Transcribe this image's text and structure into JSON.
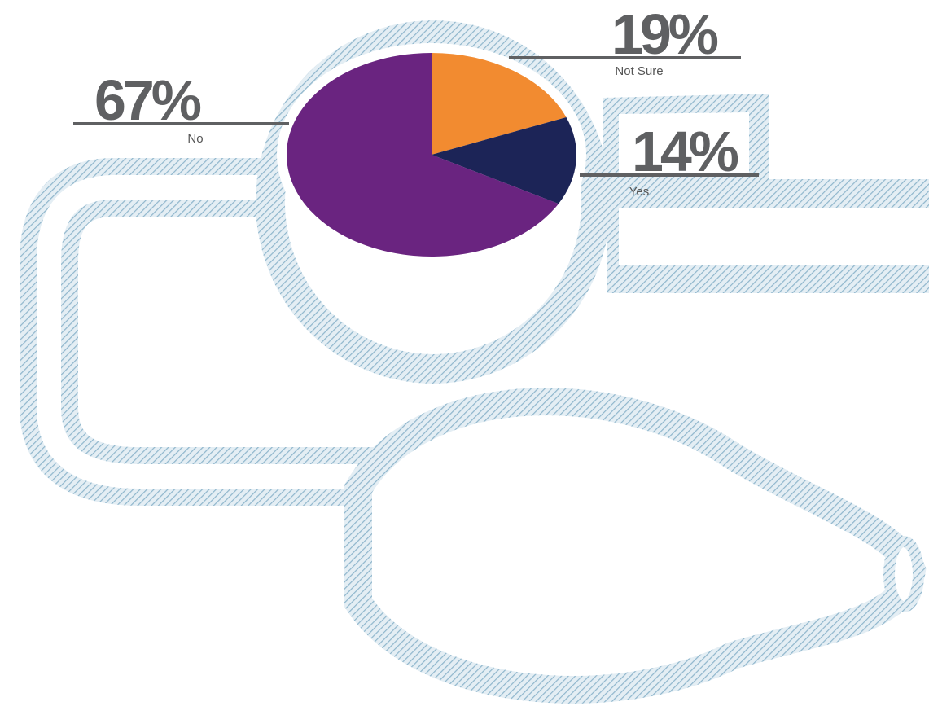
{
  "chart_data": {
    "type": "pie",
    "categories": [
      "Not Sure",
      "Yes",
      "No"
    ],
    "values": [
      19,
      14,
      67
    ],
    "value_labels": [
      "19%",
      "14%",
      "67%"
    ],
    "colors": [
      "#f28b30",
      "#1c2457",
      "#6a2480"
    ]
  }
}
